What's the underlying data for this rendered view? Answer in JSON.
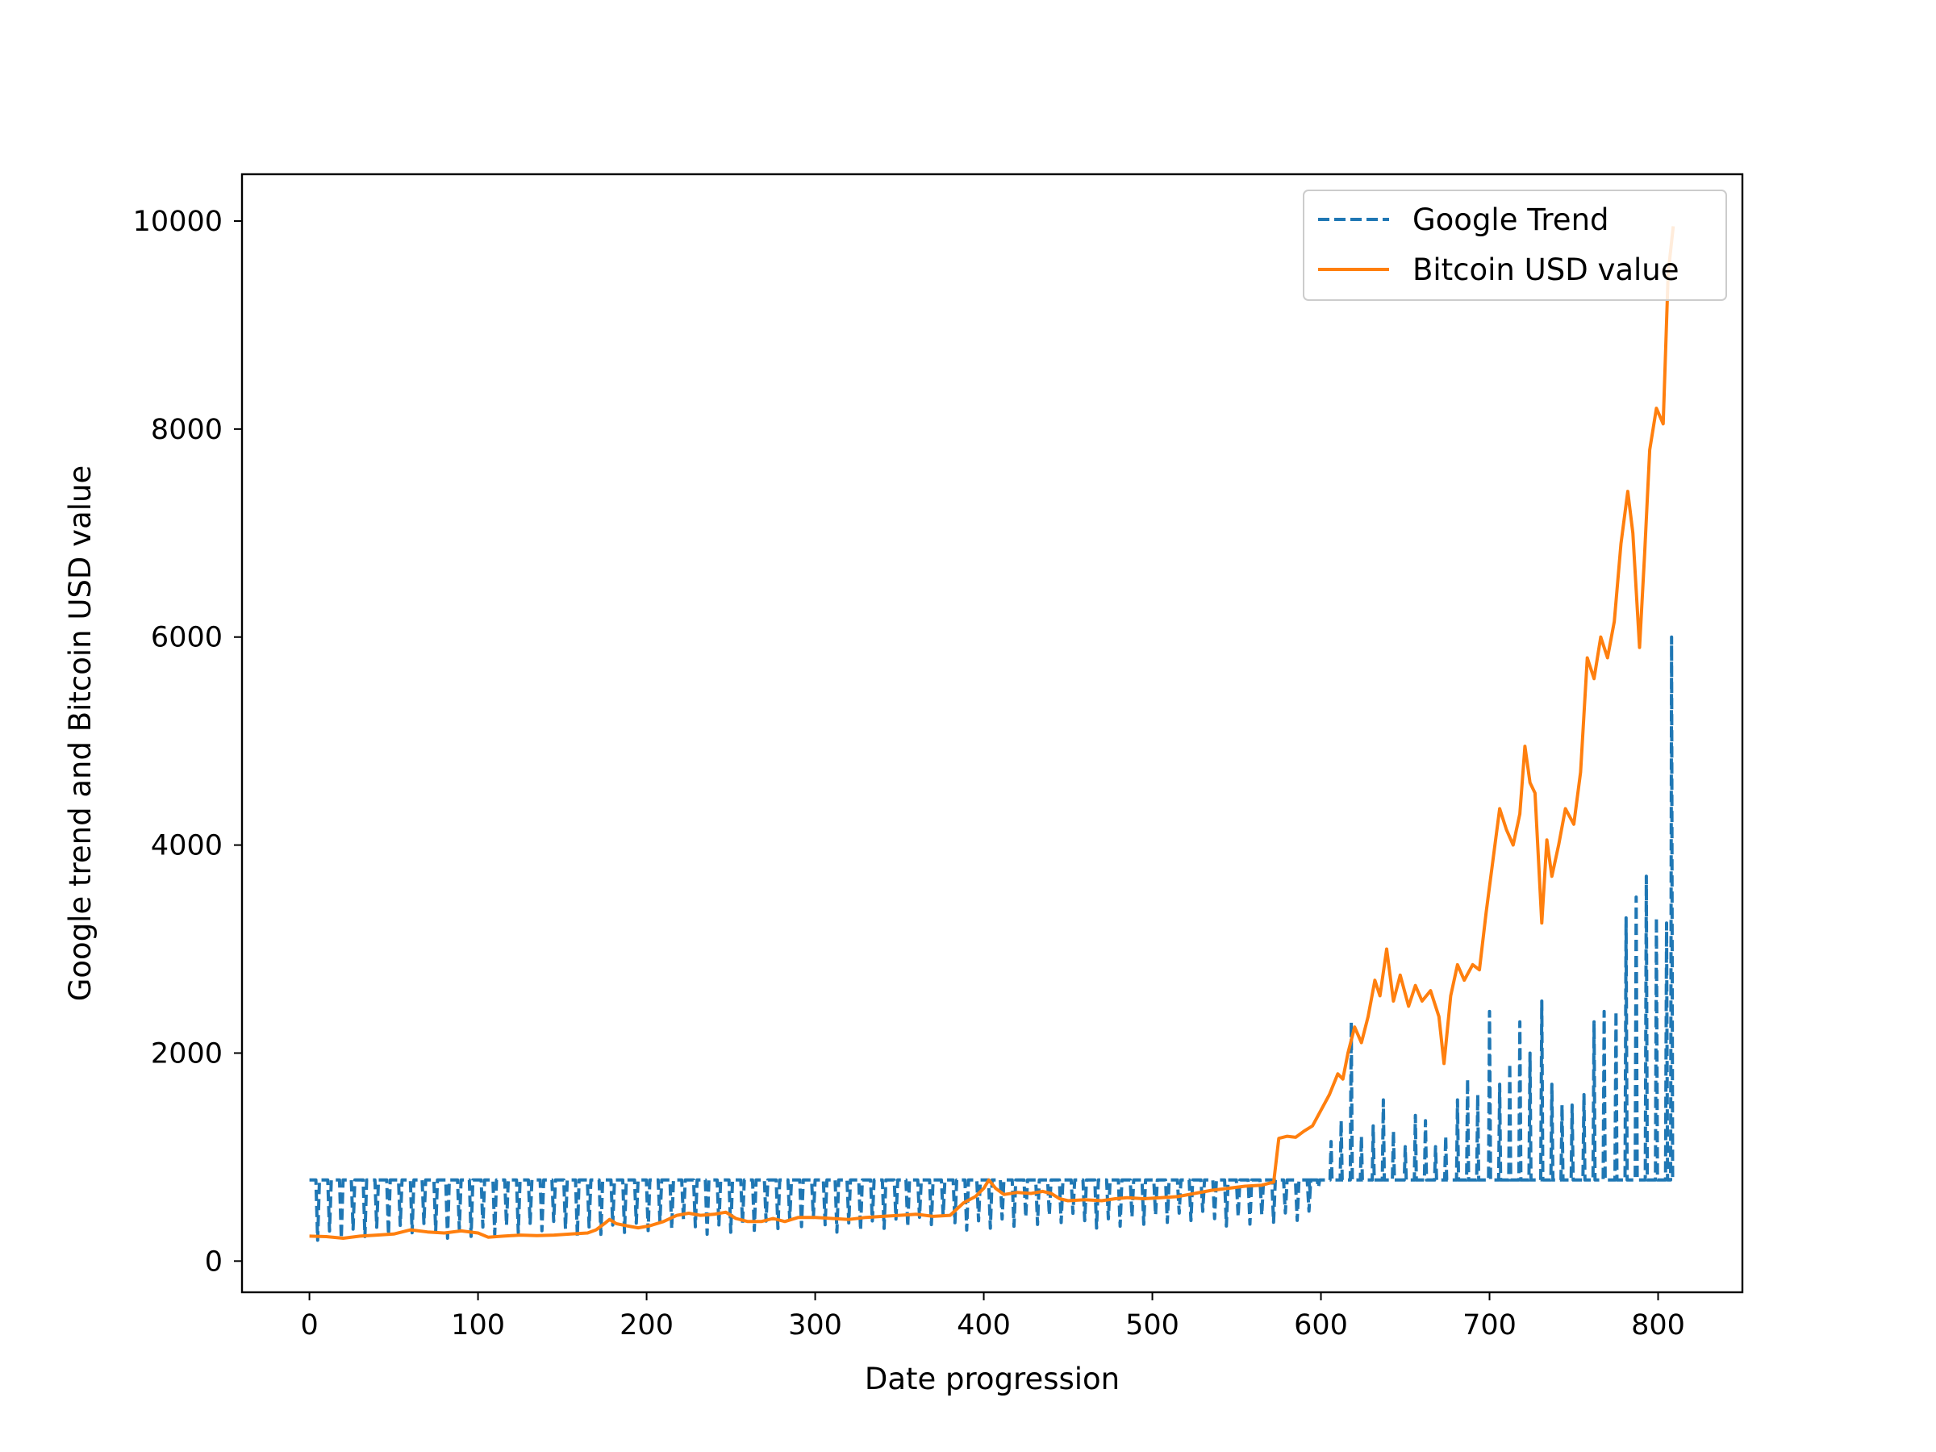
{
  "chart_data": {
    "type": "line",
    "title": "",
    "xlabel": "Date progression",
    "ylabel": "Google trend and Bitcoin USD value",
    "xlim": [
      -40,
      850
    ],
    "ylim": [
      -300,
      10450
    ],
    "xticks": [
      0,
      100,
      200,
      300,
      400,
      500,
      600,
      700,
      800
    ],
    "yticks": [
      0,
      2000,
      4000,
      6000,
      8000,
      10000
    ],
    "x_tick_labels": [
      "0",
      "100",
      "200",
      "300",
      "400",
      "500",
      "600",
      "700",
      "800"
    ],
    "y_tick_labels": [
      "0",
      "2000",
      "4000",
      "6000",
      "8000",
      "10000"
    ],
    "grid": false,
    "legend_position": "upper right",
    "series": [
      {
        "name": "Google Trend",
        "style": "dashed",
        "color": "#1f77b4",
        "baseline": 780,
        "dips": [
          {
            "from": 0,
            "to": 590,
            "period": 7,
            "depth_start": 200,
            "depth_end": 350
          },
          {
            "from": 590,
            "to": 600,
            "period": 5,
            "depth_start": 600,
            "depth_end": 700
          }
        ],
        "spikes": [
          [
            606,
            1150
          ],
          [
            612,
            1350
          ],
          [
            618,
            2300
          ],
          [
            624,
            1200
          ],
          [
            631,
            1300
          ],
          [
            637,
            1550
          ],
          [
            643,
            1250
          ],
          [
            650,
            1100
          ],
          [
            656,
            1400
          ],
          [
            662,
            1350
          ],
          [
            668,
            1100
          ],
          [
            674,
            1200
          ],
          [
            681,
            1550
          ],
          [
            687,
            1750
          ],
          [
            693,
            1600
          ],
          [
            700,
            2400
          ],
          [
            706,
            1700
          ],
          [
            712,
            1900
          ],
          [
            718,
            2300
          ],
          [
            724,
            2000
          ],
          [
            731,
            2500
          ],
          [
            737,
            1700
          ],
          [
            743,
            1500
          ],
          [
            749,
            1500
          ],
          [
            756,
            1600
          ],
          [
            762,
            2300
          ],
          [
            768,
            2400
          ],
          [
            775,
            2400
          ],
          [
            781,
            3300
          ],
          [
            787,
            3500
          ],
          [
            793,
            3700
          ],
          [
            799,
            3300
          ],
          [
            805,
            3250
          ],
          [
            808,
            6000
          ]
        ]
      },
      {
        "name": "Bitcoin USD value",
        "style": "solid",
        "color": "#ff7f0e",
        "points": [
          [
            0,
            240
          ],
          [
            10,
            235
          ],
          [
            20,
            220
          ],
          [
            30,
            240
          ],
          [
            40,
            250
          ],
          [
            50,
            260
          ],
          [
            60,
            300
          ],
          [
            70,
            280
          ],
          [
            80,
            270
          ],
          [
            90,
            290
          ],
          [
            100,
            270
          ],
          [
            106,
            230
          ],
          [
            115,
            240
          ],
          [
            125,
            250
          ],
          [
            135,
            245
          ],
          [
            145,
            250
          ],
          [
            155,
            260
          ],
          [
            165,
            270
          ],
          [
            170,
            300
          ],
          [
            175,
            360
          ],
          [
            178,
            400
          ],
          [
            182,
            360
          ],
          [
            188,
            340
          ],
          [
            195,
            320
          ],
          [
            202,
            340
          ],
          [
            210,
            380
          ],
          [
            218,
            440
          ],
          [
            225,
            460
          ],
          [
            232,
            440
          ],
          [
            240,
            450
          ],
          [
            247,
            470
          ],
          [
            253,
            410
          ],
          [
            260,
            380
          ],
          [
            268,
            380
          ],
          [
            275,
            410
          ],
          [
            282,
            380
          ],
          [
            290,
            420
          ],
          [
            300,
            420
          ],
          [
            310,
            410
          ],
          [
            320,
            400
          ],
          [
            330,
            420
          ],
          [
            340,
            430
          ],
          [
            350,
            440
          ],
          [
            360,
            450
          ],
          [
            370,
            430
          ],
          [
            380,
            440
          ],
          [
            388,
            560
          ],
          [
            395,
            620
          ],
          [
            400,
            700
          ],
          [
            403,
            780
          ],
          [
            407,
            700
          ],
          [
            412,
            640
          ],
          [
            420,
            660
          ],
          [
            428,
            650
          ],
          [
            435,
            670
          ],
          [
            440,
            650
          ],
          [
            445,
            600
          ],
          [
            450,
            580
          ],
          [
            460,
            590
          ],
          [
            470,
            580
          ],
          [
            478,
            600
          ],
          [
            485,
            610
          ],
          [
            495,
            600
          ],
          [
            505,
            610
          ],
          [
            515,
            620
          ],
          [
            525,
            650
          ],
          [
            535,
            680
          ],
          [
            545,
            700
          ],
          [
            555,
            720
          ],
          [
            565,
            730
          ],
          [
            572,
            760
          ],
          [
            575,
            1180
          ],
          [
            580,
            1200
          ],
          [
            585,
            1190
          ],
          [
            590,
            1250
          ],
          [
            595,
            1300
          ],
          [
            600,
            1450
          ],
          [
            605,
            1600
          ],
          [
            610,
            1800
          ],
          [
            613,
            1750
          ],
          [
            616,
            2000
          ],
          [
            620,
            2250
          ],
          [
            624,
            2100
          ],
          [
            628,
            2350
          ],
          [
            632,
            2700
          ],
          [
            635,
            2550
          ],
          [
            639,
            3000
          ],
          [
            643,
            2500
          ],
          [
            647,
            2750
          ],
          [
            652,
            2450
          ],
          [
            656,
            2650
          ],
          [
            660,
            2500
          ],
          [
            665,
            2600
          ],
          [
            670,
            2350
          ],
          [
            673,
            1900
          ],
          [
            677,
            2550
          ],
          [
            681,
            2850
          ],
          [
            685,
            2700
          ],
          [
            690,
            2850
          ],
          [
            694,
            2800
          ],
          [
            698,
            3350
          ],
          [
            702,
            3850
          ],
          [
            706,
            4350
          ],
          [
            710,
            4150
          ],
          [
            714,
            4000
          ],
          [
            718,
            4300
          ],
          [
            721,
            4950
          ],
          [
            724,
            4600
          ],
          [
            727,
            4500
          ],
          [
            731,
            3250
          ],
          [
            734,
            4050
          ],
          [
            737,
            3700
          ],
          [
            741,
            4000
          ],
          [
            745,
            4350
          ],
          [
            750,
            4200
          ],
          [
            754,
            4700
          ],
          [
            758,
            5800
          ],
          [
            762,
            5600
          ],
          [
            766,
            6000
          ],
          [
            770,
            5800
          ],
          [
            774,
            6150
          ],
          [
            778,
            6900
          ],
          [
            782,
            7400
          ],
          [
            785,
            7000
          ],
          [
            789,
            5900
          ],
          [
            792,
            6800
          ],
          [
            795,
            7800
          ],
          [
            799,
            8200
          ],
          [
            803,
            8050
          ],
          [
            806,
            9500
          ],
          [
            809,
            9950
          ]
        ]
      }
    ]
  }
}
